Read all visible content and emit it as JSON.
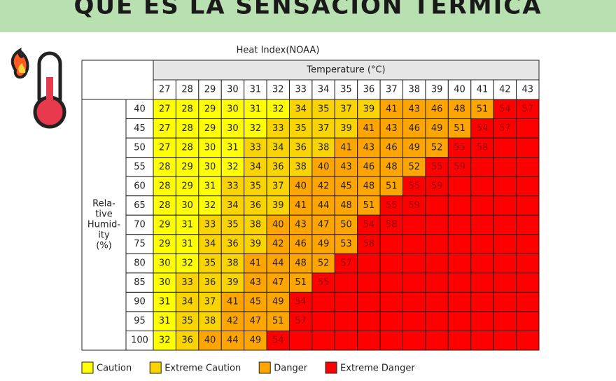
{
  "title": "QUE ES LA SENSACION TERMICA",
  "table": {
    "caption": "Heat Index(NOAA)",
    "column_header": "Temperature (°C)",
    "row_header": [
      "Rela-",
      "tive",
      "Humid-",
      "ity",
      "(%)"
    ],
    "columns": [
      27,
      28,
      29,
      30,
      31,
      32,
      33,
      34,
      35,
      36,
      37,
      38,
      39,
      40,
      41,
      42,
      43
    ],
    "rows": [
      {
        "label": 40,
        "values": [
          27,
          28,
          29,
          30,
          31,
          32,
          34,
          35,
          37,
          39,
          41,
          43,
          46,
          48,
          51,
          54,
          57
        ],
        "levels": [
          0,
          0,
          0,
          0,
          0,
          0,
          1,
          1,
          1,
          1,
          2,
          2,
          2,
          2,
          2,
          3,
          3
        ]
      },
      {
        "label": 45,
        "values": [
          27,
          28,
          29,
          30,
          32,
          33,
          35,
          37,
          39,
          41,
          43,
          46,
          49,
          51,
          54,
          57,
          null
        ],
        "levels": [
          0,
          0,
          0,
          0,
          0,
          1,
          1,
          1,
          1,
          2,
          2,
          2,
          2,
          2,
          3,
          3,
          3
        ]
      },
      {
        "label": 50,
        "values": [
          27,
          28,
          30,
          31,
          33,
          34,
          36,
          38,
          41,
          43,
          46,
          49,
          52,
          55,
          58,
          null,
          null
        ],
        "levels": [
          0,
          0,
          0,
          0,
          1,
          1,
          1,
          1,
          2,
          2,
          2,
          2,
          2,
          3,
          3,
          3,
          3
        ]
      },
      {
        "label": 55,
        "values": [
          28,
          29,
          30,
          32,
          34,
          36,
          38,
          40,
          43,
          46,
          48,
          52,
          55,
          59,
          null,
          null,
          null
        ],
        "levels": [
          0,
          0,
          0,
          0,
          1,
          1,
          1,
          2,
          2,
          2,
          2,
          2,
          3,
          3,
          3,
          3,
          3
        ]
      },
      {
        "label": 60,
        "values": [
          28,
          29,
          31,
          33,
          35,
          37,
          40,
          42,
          45,
          48,
          51,
          55,
          59,
          null,
          null,
          null,
          null
        ],
        "levels": [
          0,
          0,
          0,
          1,
          1,
          1,
          2,
          2,
          2,
          2,
          2,
          3,
          3,
          3,
          3,
          3,
          3
        ]
      },
      {
        "label": 65,
        "values": [
          28,
          30,
          32,
          34,
          36,
          39,
          41,
          44,
          48,
          51,
          55,
          59,
          null,
          null,
          null,
          null,
          null
        ],
        "levels": [
          0,
          0,
          0,
          1,
          1,
          1,
          2,
          2,
          2,
          2,
          3,
          3,
          3,
          3,
          3,
          3,
          3
        ]
      },
      {
        "label": 70,
        "values": [
          29,
          31,
          33,
          35,
          38,
          40,
          43,
          47,
          50,
          54,
          58,
          null,
          null,
          null,
          null,
          null,
          null
        ],
        "levels": [
          0,
          0,
          1,
          1,
          1,
          2,
          2,
          2,
          2,
          3,
          3,
          3,
          3,
          3,
          3,
          3,
          3
        ]
      },
      {
        "label": 75,
        "values": [
          29,
          31,
          34,
          36,
          39,
          42,
          46,
          49,
          53,
          58,
          null,
          null,
          null,
          null,
          null,
          null,
          null
        ],
        "levels": [
          0,
          0,
          1,
          1,
          1,
          2,
          2,
          2,
          2,
          3,
          3,
          3,
          3,
          3,
          3,
          3,
          3
        ]
      },
      {
        "label": 80,
        "values": [
          30,
          32,
          35,
          38,
          41,
          44,
          48,
          52,
          57,
          null,
          null,
          null,
          null,
          null,
          null,
          null,
          null
        ],
        "levels": [
          0,
          0,
          1,
          1,
          2,
          2,
          2,
          2,
          3,
          3,
          3,
          3,
          3,
          3,
          3,
          3,
          3
        ]
      },
      {
        "label": 85,
        "values": [
          30,
          33,
          36,
          39,
          43,
          47,
          51,
          55,
          null,
          null,
          null,
          null,
          null,
          null,
          null,
          null,
          null
        ],
        "levels": [
          0,
          1,
          1,
          1,
          2,
          2,
          2,
          3,
          3,
          3,
          3,
          3,
          3,
          3,
          3,
          3,
          3
        ]
      },
      {
        "label": 90,
        "values": [
          31,
          34,
          37,
          41,
          45,
          49,
          54,
          null,
          null,
          null,
          null,
          null,
          null,
          null,
          null,
          null,
          null
        ],
        "levels": [
          0,
          1,
          1,
          2,
          2,
          2,
          3,
          3,
          3,
          3,
          3,
          3,
          3,
          3,
          3,
          3,
          3
        ]
      },
      {
        "label": 95,
        "values": [
          31,
          35,
          38,
          42,
          47,
          51,
          57,
          null,
          null,
          null,
          null,
          null,
          null,
          null,
          null,
          null,
          null
        ],
        "levels": [
          0,
          1,
          1,
          2,
          2,
          2,
          3,
          3,
          3,
          3,
          3,
          3,
          3,
          3,
          3,
          3,
          3
        ]
      },
      {
        "label": 100,
        "values": [
          32,
          36,
          40,
          44,
          49,
          54,
          null,
          null,
          null,
          null,
          null,
          null,
          null,
          null,
          null,
          null,
          null
        ],
        "levels": [
          0,
          1,
          2,
          2,
          2,
          3,
          3,
          3,
          3,
          3,
          3,
          3,
          3,
          3,
          3,
          3,
          3
        ]
      }
    ]
  },
  "legend": [
    {
      "label": "Caution",
      "color": "#ffff00",
      "text": "#222222"
    },
    {
      "label": "Extreme Caution",
      "color": "#f9d400",
      "text": "#222222"
    },
    {
      "label": "Danger",
      "color": "#ffa500",
      "text": "#222222"
    },
    {
      "label": "Extreme Danger",
      "color": "#ff0000",
      "text": "#8b0000"
    }
  ]
}
